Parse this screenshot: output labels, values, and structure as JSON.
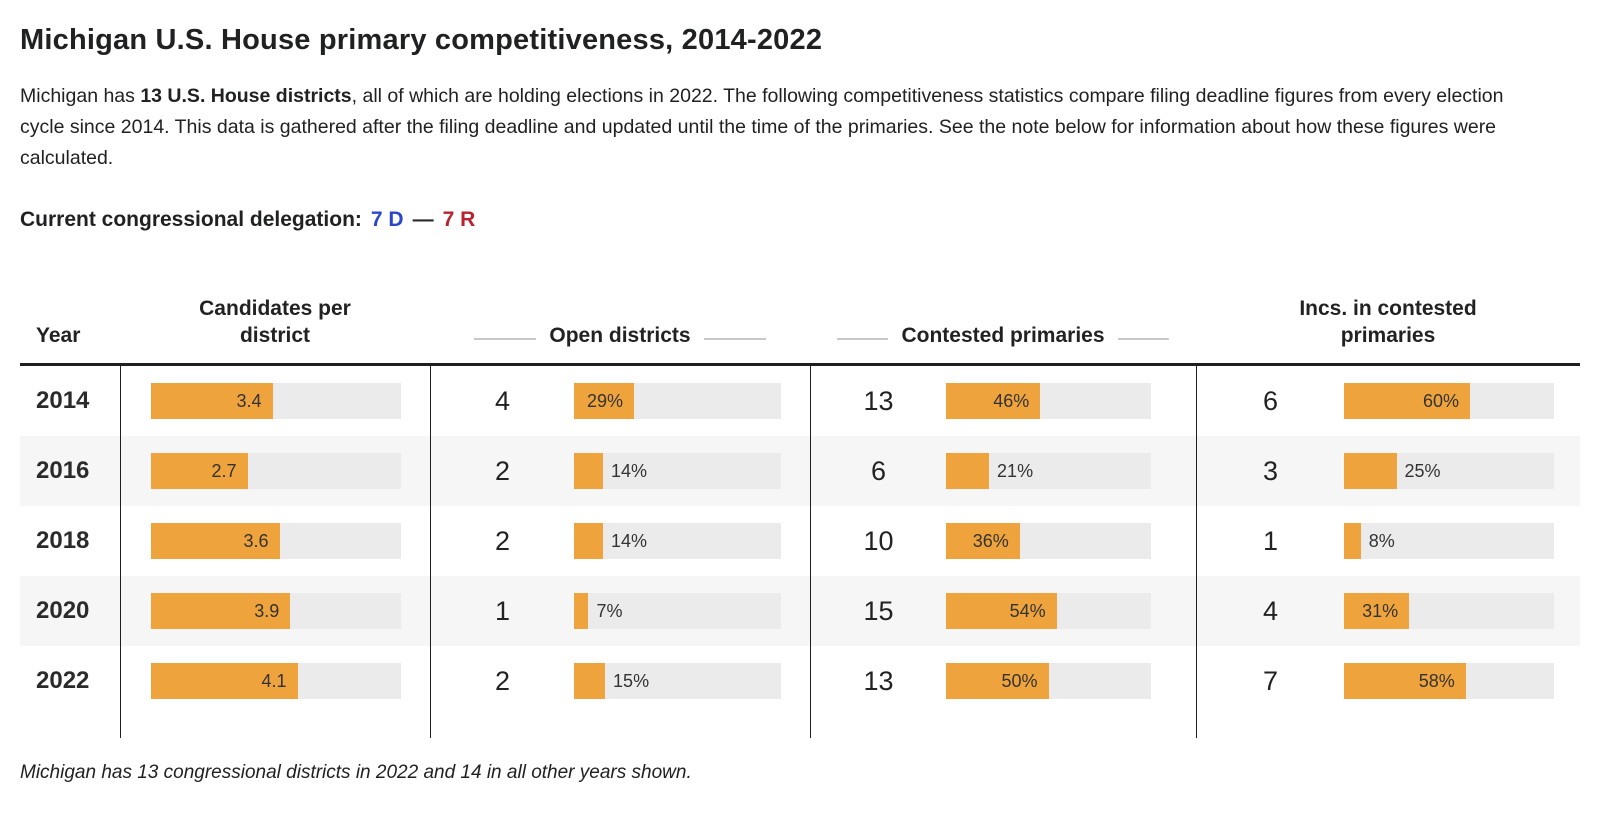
{
  "header": {
    "title": "Michigan U.S. House primary competitiveness, 2014-2022"
  },
  "intro": {
    "part1": "Michigan has ",
    "bold": "13 U.S. House districts",
    "part2": ", all of which are holding elections in 2022. The following competitiveness statistics compare filing deadline figures from every election cycle since 2014. This data is gathered after the filing deadline and updated until the time of the primaries. See the note below for information about how these figures were calculated."
  },
  "delegation": {
    "label": "Current congressional delegation:",
    "dem": "7 D",
    "separator": "—",
    "rep": "7 R"
  },
  "table": {
    "headers": {
      "year": "Year",
      "candidates": "Candidates per district",
      "open": "Open districts",
      "contested": "Contested primaries",
      "incs": "Incs. in contested primaries"
    },
    "rows": [
      {
        "year": "2014",
        "candidates": {
          "label": "3.4",
          "pct": 48.6
        },
        "open": {
          "count": "4",
          "label": "29%",
          "pct": 29
        },
        "contested": {
          "count": "13",
          "label": "46%",
          "pct": 46
        },
        "incs": {
          "count": "6",
          "label": "60%",
          "pct": 60
        }
      },
      {
        "year": "2016",
        "candidates": {
          "label": "2.7",
          "pct": 38.6
        },
        "open": {
          "count": "2",
          "label": "14%",
          "pct": 14
        },
        "contested": {
          "count": "6",
          "label": "21%",
          "pct": 21
        },
        "incs": {
          "count": "3",
          "label": "25%",
          "pct": 25
        }
      },
      {
        "year": "2018",
        "candidates": {
          "label": "3.6",
          "pct": 51.4
        },
        "open": {
          "count": "2",
          "label": "14%",
          "pct": 14
        },
        "contested": {
          "count": "10",
          "label": "36%",
          "pct": 36
        },
        "incs": {
          "count": "1",
          "label": "8%",
          "pct": 8
        }
      },
      {
        "year": "2020",
        "candidates": {
          "label": "3.9",
          "pct": 55.7
        },
        "open": {
          "count": "1",
          "label": "7%",
          "pct": 7
        },
        "contested": {
          "count": "15",
          "label": "54%",
          "pct": 54
        },
        "incs": {
          "count": "4",
          "label": "31%",
          "pct": 31
        }
      },
      {
        "year": "2022",
        "candidates": {
          "label": "4.1",
          "pct": 58.6
        },
        "open": {
          "count": "2",
          "label": "15%",
          "pct": 15
        },
        "contested": {
          "count": "13",
          "label": "50%",
          "pct": 50
        },
        "incs": {
          "count": "7",
          "label": "58%",
          "pct": 58
        }
      }
    ]
  },
  "footnote": "Michigan has 13 congressional districts in 2022 and 14 in all other years shown.",
  "colors": {
    "bar_fill": "#efa33c",
    "bar_track": "#ebebeb",
    "dem_blue": "#2b45cb",
    "rep_red": "#b8222f",
    "rule": "#1f1f1f"
  },
  "chart_data": {
    "type": "table",
    "title": "Michigan U.S. House primary competitiveness, 2014-2022",
    "categories": [
      "2014",
      "2016",
      "2018",
      "2020",
      "2022"
    ],
    "series": [
      {
        "name": "Candidates per district",
        "values": [
          3.4,
          2.7,
          3.6,
          3.9,
          4.1
        ],
        "bar_scale_max": 7
      },
      {
        "name": "Open districts (count)",
        "values": [
          4,
          2,
          2,
          1,
          2
        ]
      },
      {
        "name": "Open districts (%)",
        "values": [
          29,
          14,
          14,
          7,
          15
        ]
      },
      {
        "name": "Contested primaries (count)",
        "values": [
          13,
          6,
          10,
          15,
          13
        ]
      },
      {
        "name": "Contested primaries (%)",
        "values": [
          46,
          21,
          36,
          54,
          50
        ]
      },
      {
        "name": "Incs. in contested primaries (count)",
        "values": [
          6,
          3,
          1,
          4,
          7
        ]
      },
      {
        "name": "Incs. in contested primaries (%)",
        "values": [
          60,
          25,
          8,
          31,
          58
        ]
      }
    ],
    "bar_color": "#efa33c",
    "legend_position": "none",
    "grid": false,
    "note": "Michigan has 13 congressional districts in 2022 and 14 in all other years shown."
  }
}
